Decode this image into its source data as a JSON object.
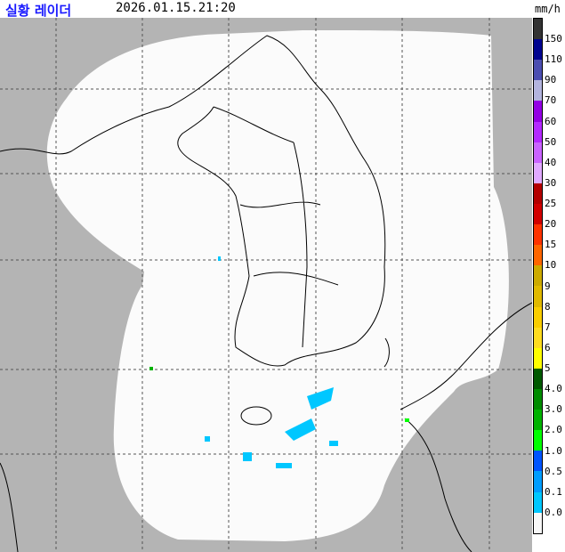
{
  "header": {
    "title": "실황 레이더",
    "timestamp": "2026.01.15.21:20",
    "unit": "mm/h"
  },
  "legend": {
    "colors": [
      "#333333",
      "#000390",
      "#4c4eb1",
      "#b3b4de",
      "#9300e4",
      "#b329ff",
      "#c963ff",
      "#e0a9ff",
      "#b40000",
      "#d20000",
      "#ff3300",
      "#ff6600",
      "#ccaa00",
      "#e0b900",
      "#f9cd00",
      "#ffdc1f",
      "#ffff00",
      "#005a00",
      "#008c00",
      "#00b300",
      "#00ff00",
      "#0055ff",
      "#009dff",
      "#00c7ff",
      "#f7f7f7"
    ],
    "labels": [
      "150",
      "110",
      "90",
      "70",
      "60",
      "50",
      "40",
      "30",
      "25",
      "20",
      "15",
      "10",
      "9",
      "8",
      "7",
      "6",
      "5",
      "4.0",
      "3.0",
      "2.0",
      "1.0",
      "0.5",
      "0.1",
      "0.0"
    ]
  },
  "map": {
    "outside_color": "#b4b4b4",
    "coverage_color": "#fbfbfb",
    "echo_color": "#00c7ff"
  }
}
